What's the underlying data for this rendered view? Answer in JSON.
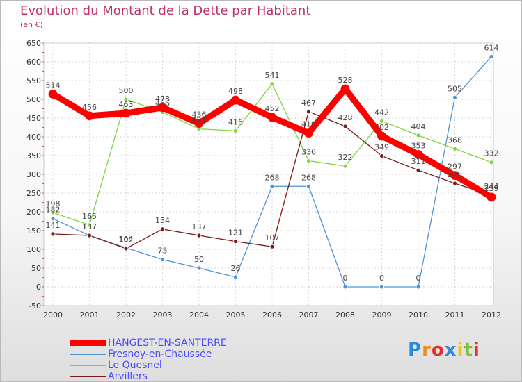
{
  "chart_data": {
    "type": "line",
    "title": "Evolution du Montant de la Dette par Habitant",
    "subtitle": "(en €)",
    "xlabel": "",
    "ylabel": "",
    "ylim": [
      -50,
      650
    ],
    "yticks": [
      -50,
      0,
      50,
      100,
      150,
      200,
      250,
      300,
      350,
      400,
      450,
      500,
      550,
      600,
      650
    ],
    "grid": true,
    "legend_position": "bottom-left",
    "x": [
      "2000",
      "2001",
      "2002",
      "2003",
      "2004",
      "2005",
      "2006",
      "2007",
      "2008",
      "2009",
      "2010",
      "2011",
      "2012"
    ],
    "series": [
      {
        "name": "HANGEST-EN-SANTERRE",
        "color": "#ff0000",
        "values": [
          514,
          456,
          463,
          478,
          436,
          498,
          452,
          410,
          528,
          402,
          353,
          297,
          239
        ]
      },
      {
        "name": "Fresnoy-en-Chaussée",
        "color": "#4f94d4",
        "values": [
          182,
          137,
          104,
          73,
          50,
          26,
          268,
          268,
          0,
          0,
          0,
          505,
          614
        ]
      },
      {
        "name": "Le Quesnel",
        "color": "#7dd63f",
        "values": [
          198,
          165,
          500,
          466,
          421,
          416,
          541,
          336,
          322,
          442,
          404,
          368,
          332
        ]
      },
      {
        "name": "Arvillers",
        "color": "#7a1a1a",
        "values": [
          141,
          137,
          102,
          154,
          137,
          121,
          107,
          467,
          428,
          349,
          311,
          276,
          244
        ]
      }
    ]
  },
  "logo": {
    "text": "Proxiti"
  }
}
